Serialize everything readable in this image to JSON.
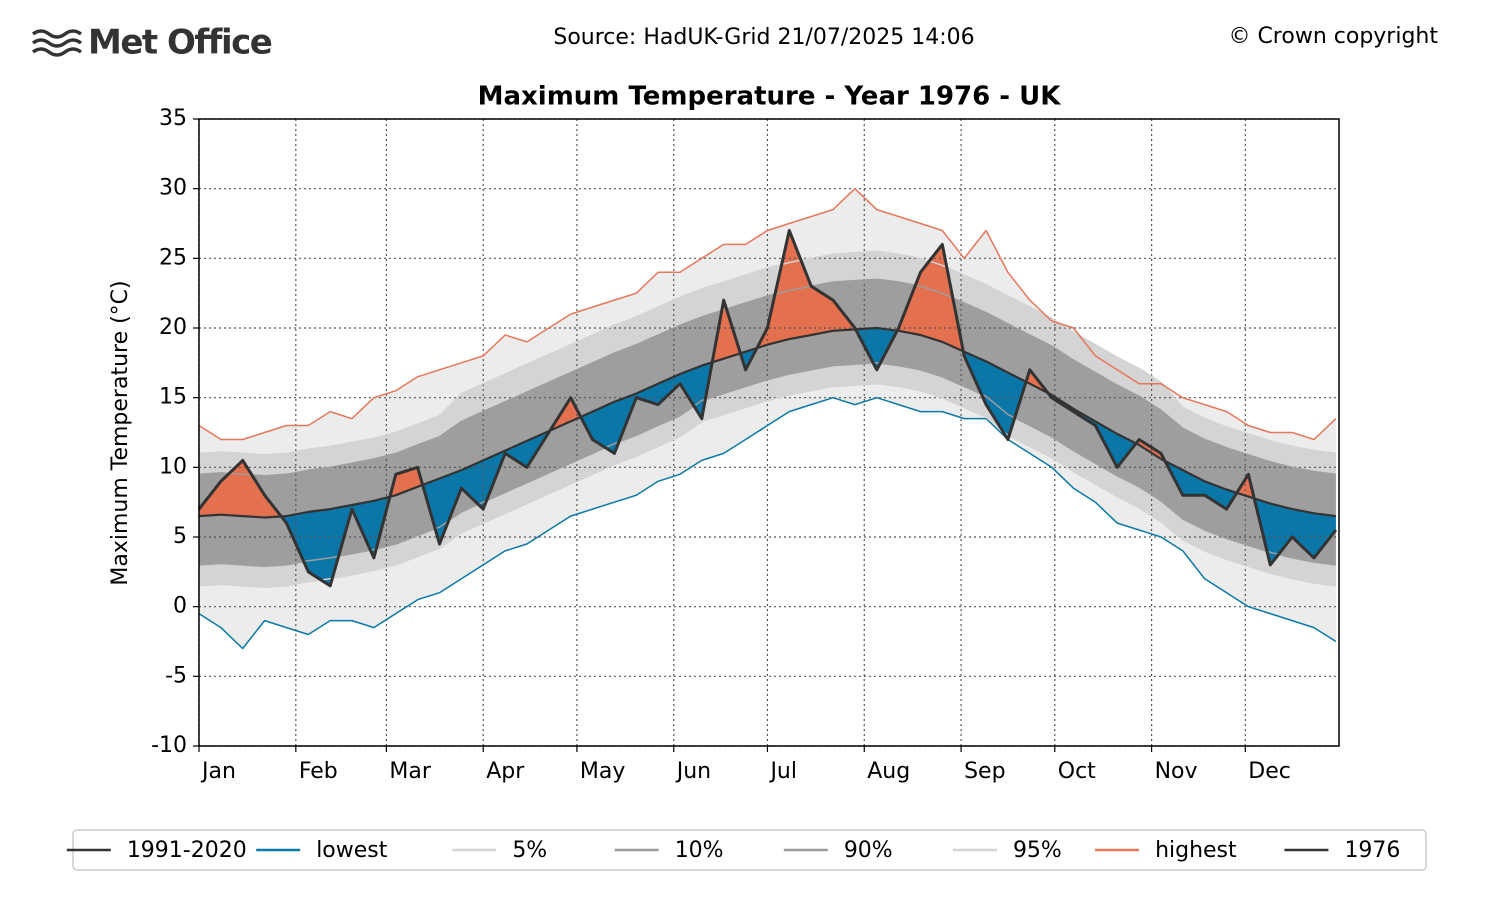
{
  "header": {
    "logo": "Met Office",
    "source": "Source: HadUK-Grid 21/07/2025 14:06",
    "copyright": "© Crown copyright"
  },
  "chart_data": {
    "type": "line",
    "title": "Maximum Temperature - Year 1976 - UK",
    "y_label": "Maximum Temperature (°C)",
    "x": [
      1,
      8,
      15,
      22,
      29,
      36,
      43,
      50,
      57,
      64,
      71,
      78,
      85,
      92,
      99,
      106,
      113,
      120,
      127,
      134,
      141,
      148,
      155,
      162,
      169,
      176,
      183,
      190,
      197,
      204,
      211,
      218,
      225,
      232,
      239,
      246,
      253,
      260,
      267,
      274,
      281,
      288,
      295,
      302,
      309,
      316,
      323,
      330,
      337,
      344,
      351,
      358,
      365
    ],
    "xlim": [
      1,
      366
    ],
    "xticks": [
      {
        "value": 1,
        "label": "Jan"
      },
      {
        "value": 32,
        "label": "Feb"
      },
      {
        "value": 61,
        "label": "Mar"
      },
      {
        "value": 92,
        "label": "Apr"
      },
      {
        "value": 122,
        "label": "May"
      },
      {
        "value": 153,
        "label": "Jun"
      },
      {
        "value": 183,
        "label": "Jul"
      },
      {
        "value": 214,
        "label": "Aug"
      },
      {
        "value": 245,
        "label": "Sep"
      },
      {
        "value": 275,
        "label": "Oct"
      },
      {
        "value": 306,
        "label": "Nov"
      },
      {
        "value": 336,
        "label": "Dec"
      }
    ],
    "ylim": [
      -10,
      35
    ],
    "yticks": [
      -10,
      -5,
      0,
      5,
      10,
      15,
      20,
      25,
      30,
      35
    ],
    "grid": true,
    "legend": "lower center",
    "fill_above_color": "#e3704e",
    "fill_below_color": "#0b77a8",
    "series": [
      {
        "name": "1991-2020",
        "color": "#333333",
        "values": [
          6.5,
          6.6,
          6.5,
          6.4,
          6.5,
          6.8,
          7,
          7.3,
          7.6,
          8,
          8.6,
          9.2,
          9.8,
          10.5,
          11.2,
          11.9,
          12.6,
          13.3,
          14,
          14.7,
          15.3,
          16,
          16.7,
          17.3,
          17.8,
          18.3,
          18.8,
          19.2,
          19.5,
          19.8,
          19.9,
          20,
          19.8,
          19.5,
          19,
          18.3,
          17.6,
          16.8,
          16,
          15.2,
          14.2,
          13.3,
          12.4,
          11.6,
          10.6,
          9.8,
          9,
          8.4,
          7.9,
          7.4,
          7,
          6.7,
          6.5
        ]
      },
      {
        "name": "lowest",
        "color": "#0a7aa8",
        "values": [
          -0.5,
          -1.5,
          -3,
          -1,
          -1.5,
          -2,
          -1,
          -1,
          -1.5,
          -0.5,
          0.5,
          1,
          2,
          3,
          4,
          4.5,
          5.5,
          6.5,
          7,
          7.5,
          8,
          9,
          9.5,
          10.5,
          11,
          12,
          13,
          14,
          14.5,
          15,
          14.5,
          15,
          14.5,
          14,
          14,
          13.5,
          13.5,
          12,
          11,
          10,
          8.5,
          7.5,
          6,
          5.5,
          5,
          4,
          2,
          1,
          0,
          -0.5,
          -1,
          -1.5,
          -2.5
        ]
      },
      {
        "name": "5%",
        "color": "#d4d4d4",
        "values": [
          1.5,
          1.6,
          1.5,
          1.4,
          1.5,
          1.8,
          2,
          2.3,
          2.6,
          3,
          3.6,
          4.2,
          5.3,
          6,
          6.7,
          7.4,
          8.1,
          8.8,
          9.5,
          10.2,
          10.8,
          11.5,
          12.2,
          13.3,
          13.8,
          14.3,
          14.8,
          15.2,
          15.5,
          15.8,
          15.9,
          16,
          15.8,
          15.5,
          15,
          14.3,
          13.6,
          12.3,
          11.5,
          10.7,
          9.7,
          8.8,
          7.9,
          7.1,
          6.1,
          4.8,
          4,
          3.4,
          2.9,
          2.4,
          2,
          1.7,
          1.5
        ]
      },
      {
        "name": "10%",
        "color": "#9e9e9e",
        "values": [
          3,
          3.1,
          3,
          2.9,
          3,
          3.3,
          3.5,
          3.8,
          4.1,
          4.5,
          5.1,
          5.7,
          6.8,
          7.5,
          8.2,
          8.9,
          9.6,
          10.3,
          11,
          11.7,
          12.3,
          13,
          13.7,
          14.8,
          15.3,
          15.8,
          16.3,
          16.7,
          17,
          17.3,
          17.4,
          17.5,
          17.3,
          17,
          16.5,
          15.8,
          15.1,
          13.8,
          13,
          12.2,
          11.2,
          10.3,
          9.4,
          8.6,
          7.6,
          6.3,
          5.5,
          4.9,
          4.4,
          3.9,
          3.5,
          3.2,
          3
        ]
      },
      {
        "name": "90%",
        "color": "#9e9e9e",
        "values": [
          9.5,
          9.6,
          9.5,
          9.4,
          9.5,
          9.8,
          10,
          10.3,
          10.6,
          11,
          11.6,
          12.2,
          13.3,
          14,
          14.7,
          15.4,
          16.1,
          16.8,
          17.5,
          18.2,
          18.8,
          19.5,
          20.2,
          20.8,
          21.3,
          21.8,
          22.3,
          22.7,
          23,
          23.3,
          23.4,
          23.5,
          23.3,
          23,
          22.5,
          21.8,
          21.1,
          20.3,
          19.5,
          18.7,
          17.7,
          16.8,
          15.9,
          15.1,
          14.1,
          12.8,
          12,
          11.4,
          10.9,
          10.4,
          10,
          9.7,
          9.5
        ]
      },
      {
        "name": "95%",
        "color": "#d4d4d4",
        "values": [
          11,
          11.1,
          11,
          10.9,
          11,
          11.3,
          11.5,
          11.8,
          12.1,
          12.5,
          13.1,
          13.7,
          15.3,
          16,
          16.7,
          17.4,
          18.1,
          18.8,
          19.5,
          20.2,
          20.8,
          21.5,
          22.2,
          22.8,
          23.3,
          23.8,
          24.3,
          24.7,
          25,
          25.3,
          25.4,
          25.5,
          25.3,
          25,
          24.5,
          23.8,
          23.1,
          22.3,
          21.5,
          20.7,
          19.7,
          18.8,
          17.9,
          17.1,
          16.1,
          14.3,
          13.5,
          12.9,
          12.4,
          11.9,
          11.5,
          11.2,
          11
        ]
      },
      {
        "name": "highest",
        "color": "#e8775a",
        "values": [
          13,
          12,
          12,
          12.5,
          13,
          13,
          14,
          13.5,
          15,
          15.5,
          16.5,
          17,
          17.5,
          18,
          19.5,
          19,
          20,
          21,
          21.5,
          22,
          22.5,
          24,
          24,
          25,
          26,
          26,
          27,
          27.5,
          28,
          28.5,
          30,
          28.5,
          28,
          27.5,
          27,
          25,
          27,
          24,
          22,
          20.5,
          20,
          18,
          17,
          16,
          16,
          15,
          14.5,
          14,
          13,
          12.5,
          12.5,
          12,
          13.5
        ]
      },
      {
        "name": "1976",
        "color": "#333333",
        "values": [
          7,
          9,
          10.5,
          8,
          6,
          2.5,
          1.5,
          7,
          3.5,
          9.5,
          10,
          4.5,
          8.5,
          7,
          11,
          10,
          12.5,
          15,
          12,
          11,
          15,
          14.5,
          16,
          13.5,
          22,
          17,
          20,
          27,
          23,
          22,
          20,
          17,
          20,
          24,
          26,
          18,
          14.5,
          12,
          17,
          15,
          14,
          13,
          10,
          12,
          11,
          8,
          8,
          7,
          9.5,
          3,
          5,
          3.5,
          5.5
        ]
      }
    ]
  }
}
